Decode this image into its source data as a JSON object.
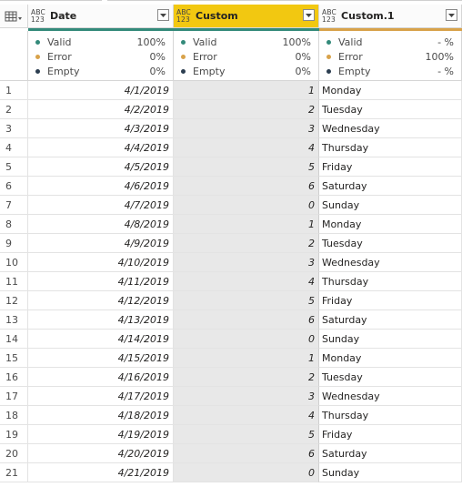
{
  "columns": [
    {
      "title": "Date",
      "type_top": "ABC",
      "type_bottom": "123"
    },
    {
      "title": "Custom",
      "type_top": "ABC",
      "type_bottom": "123"
    },
    {
      "title": "Custom.1",
      "type_top": "ABC",
      "type_bottom": "123"
    }
  ],
  "stats": [
    {
      "valid_label": "Valid",
      "valid": "100%",
      "error_label": "Error",
      "error": "0%",
      "empty_label": "Empty",
      "empty": "0%"
    },
    {
      "valid_label": "Valid",
      "valid": "100%",
      "error_label": "Error",
      "error": "0%",
      "empty_label": "Empty",
      "empty": "0%"
    },
    {
      "valid_label": "Valid",
      "valid": "- %",
      "error_label": "Error",
      "error": "100%",
      "empty_label": "Empty",
      "empty": "- %"
    }
  ],
  "quality": [
    {
      "valid": 1.0,
      "error": 0.0,
      "empty": 0.0
    },
    {
      "valid": 1.0,
      "error": 0.0,
      "empty": 0.0
    },
    {
      "valid": 0.0,
      "error": 1.0,
      "empty": 0.0
    }
  ],
  "colors": {
    "valid": "#338a7a",
    "error": "#d8a24a",
    "empty": "#2c3e50",
    "selected_header": "#f2c811",
    "selected_column": "#e8e8e8"
  },
  "rows": [
    {
      "index": "1",
      "date": "4/1/2019",
      "custom": "1",
      "day": "Monday"
    },
    {
      "index": "2",
      "date": "4/2/2019",
      "custom": "2",
      "day": "Tuesday"
    },
    {
      "index": "3",
      "date": "4/3/2019",
      "custom": "3",
      "day": "Wednesday"
    },
    {
      "index": "4",
      "date": "4/4/2019",
      "custom": "4",
      "day": "Thursday"
    },
    {
      "index": "5",
      "date": "4/5/2019",
      "custom": "5",
      "day": "Friday"
    },
    {
      "index": "6",
      "date": "4/6/2019",
      "custom": "6",
      "day": "Saturday"
    },
    {
      "index": "7",
      "date": "4/7/2019",
      "custom": "0",
      "day": "Sunday"
    },
    {
      "index": "8",
      "date": "4/8/2019",
      "custom": "1",
      "day": "Monday"
    },
    {
      "index": "9",
      "date": "4/9/2019",
      "custom": "2",
      "day": "Tuesday"
    },
    {
      "index": "10",
      "date": "4/10/2019",
      "custom": "3",
      "day": "Wednesday"
    },
    {
      "index": "11",
      "date": "4/11/2019",
      "custom": "4",
      "day": "Thursday"
    },
    {
      "index": "12",
      "date": "4/12/2019",
      "custom": "5",
      "day": "Friday"
    },
    {
      "index": "13",
      "date": "4/13/2019",
      "custom": "6",
      "day": "Saturday"
    },
    {
      "index": "14",
      "date": "4/14/2019",
      "custom": "0",
      "day": "Sunday"
    },
    {
      "index": "15",
      "date": "4/15/2019",
      "custom": "1",
      "day": "Monday"
    },
    {
      "index": "16",
      "date": "4/16/2019",
      "custom": "2",
      "day": "Tuesday"
    },
    {
      "index": "17",
      "date": "4/17/2019",
      "custom": "3",
      "day": "Wednesday"
    },
    {
      "index": "18",
      "date": "4/18/2019",
      "custom": "4",
      "day": "Thursday"
    },
    {
      "index": "19",
      "date": "4/19/2019",
      "custom": "5",
      "day": "Friday"
    },
    {
      "index": "20",
      "date": "4/20/2019",
      "custom": "6",
      "day": "Saturday"
    },
    {
      "index": "21",
      "date": "4/21/2019",
      "custom": "0",
      "day": "Sunday"
    }
  ]
}
